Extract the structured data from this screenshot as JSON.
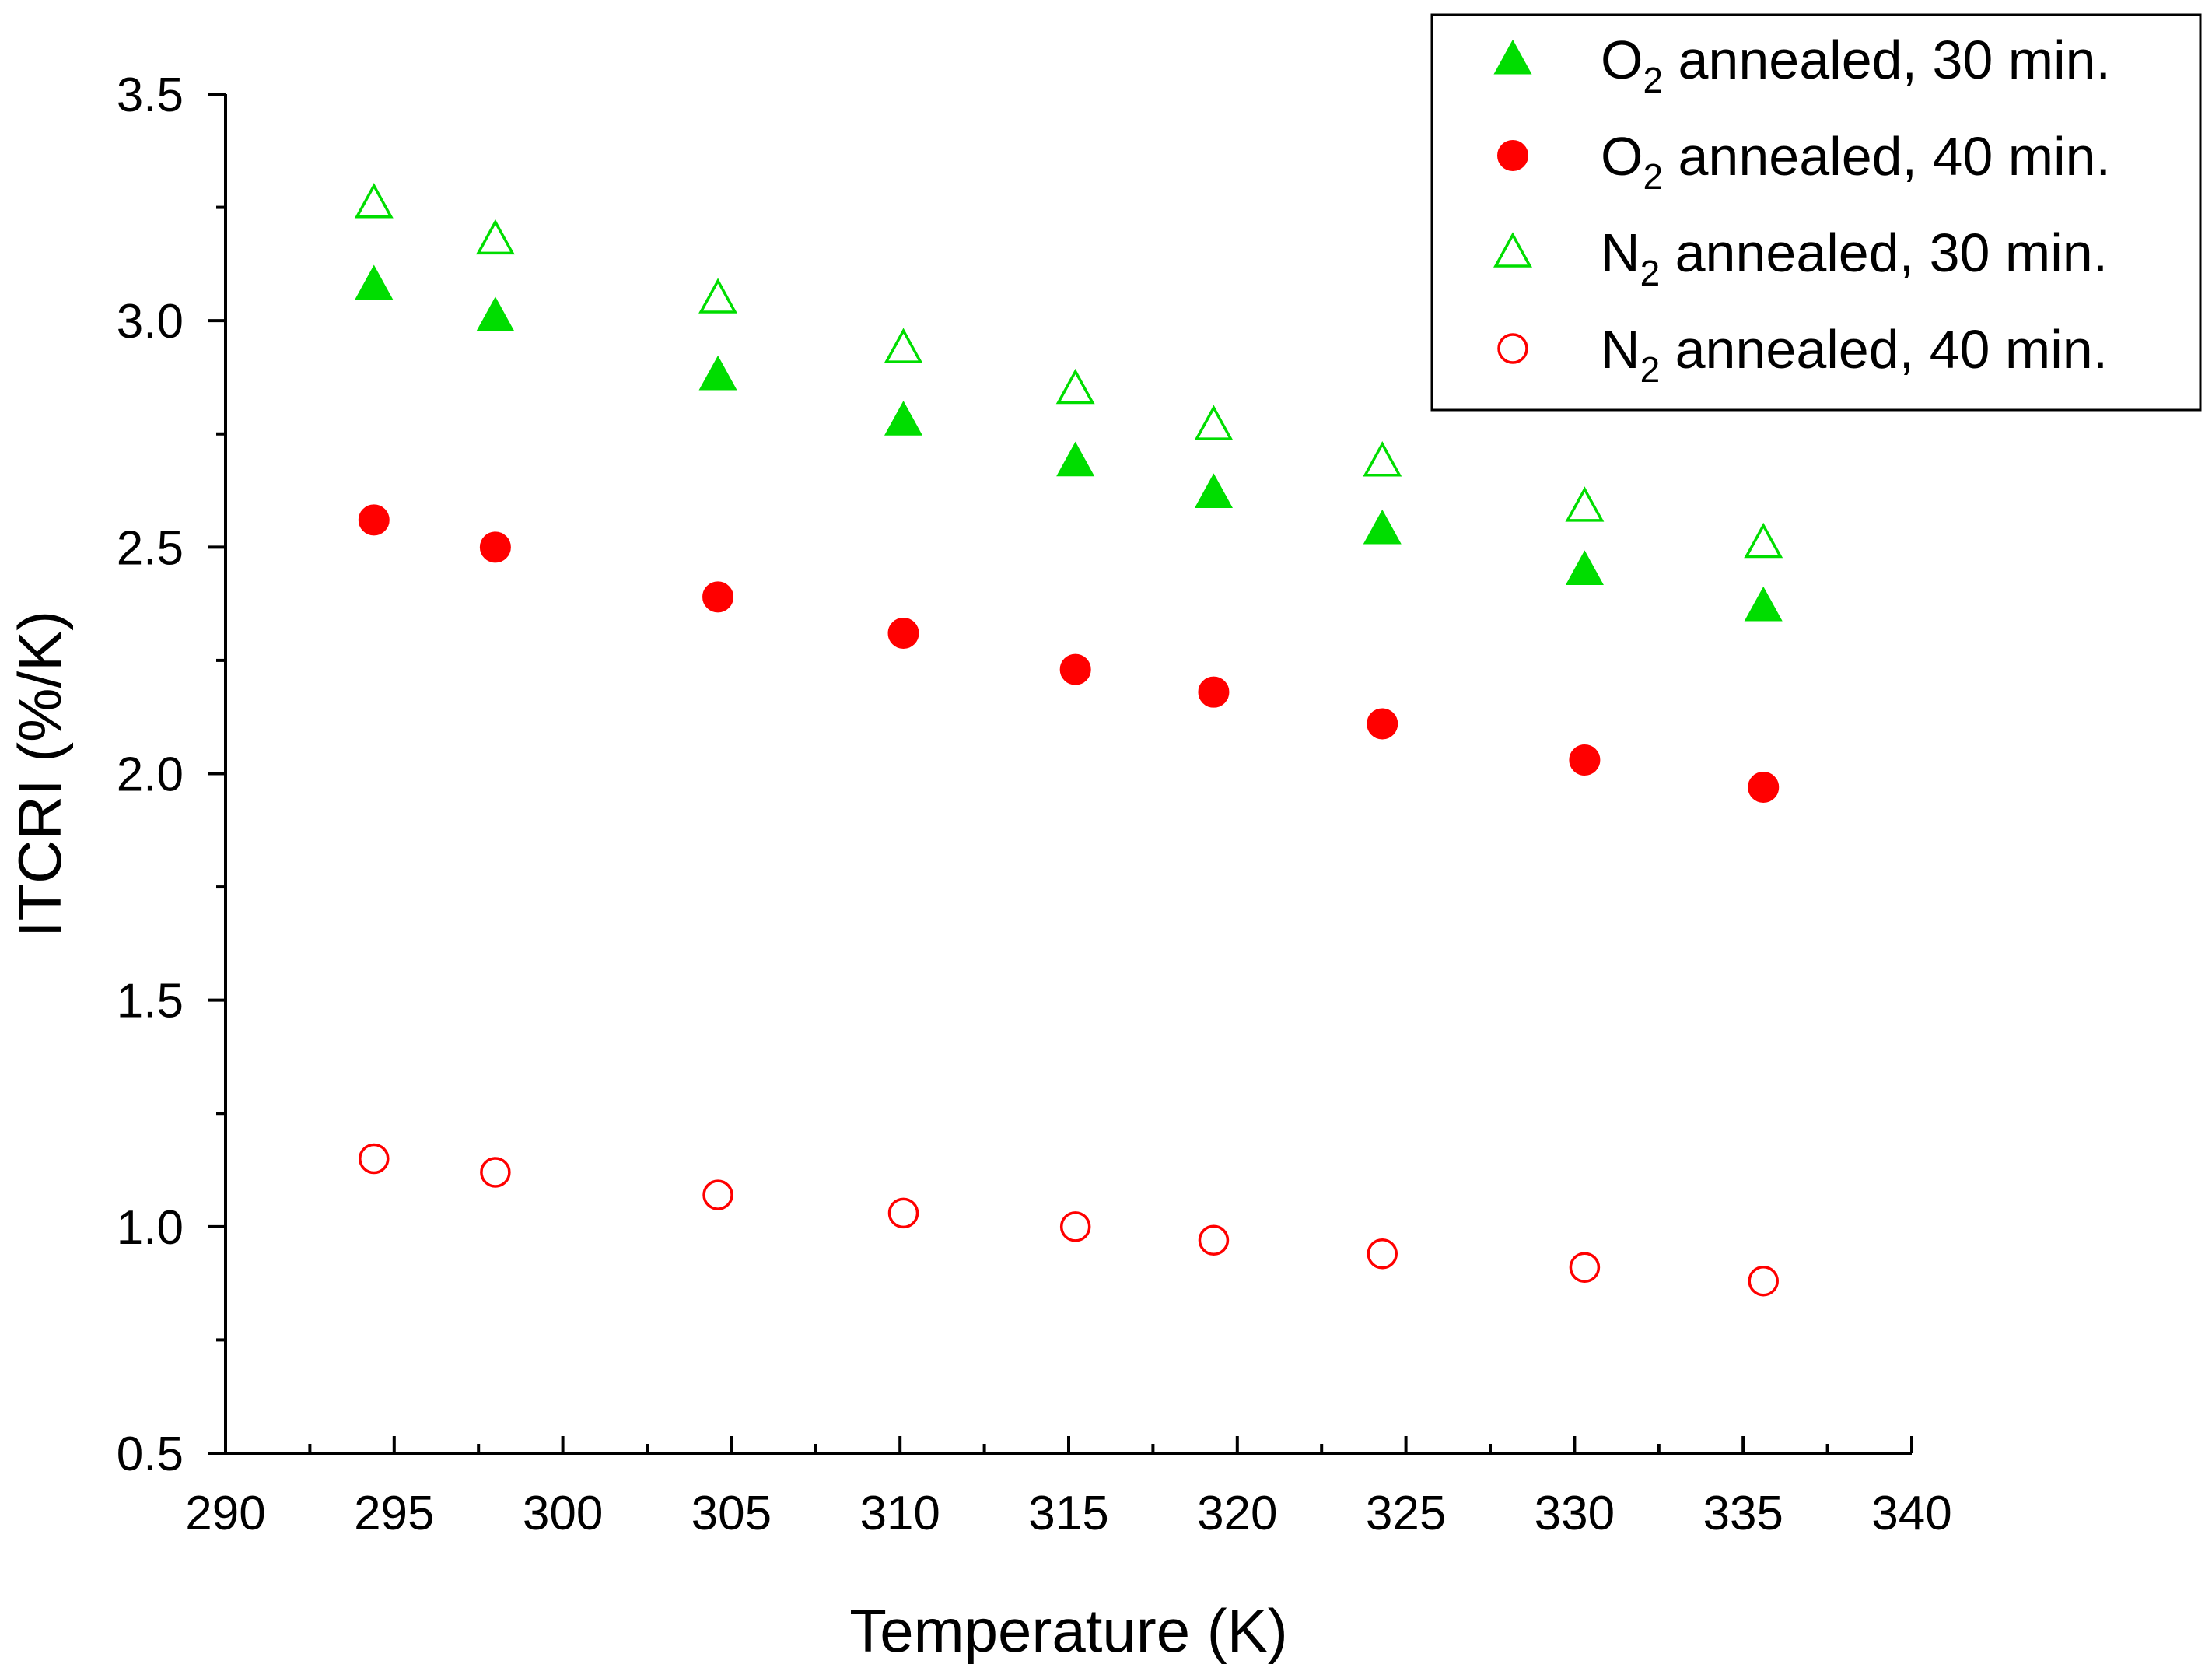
{
  "chart_data": {
    "type": "scatter",
    "title": "",
    "xlabel": "Temperature (K)",
    "ylabel": "ITCRI (%/K)",
    "xlim": [
      290,
      340
    ],
    "ylim": [
      0.5,
      3.5
    ],
    "x_ticks": [
      290,
      295,
      300,
      305,
      310,
      315,
      320,
      325,
      330,
      335,
      340
    ],
    "y_ticks": [
      0.5,
      1.0,
      1.5,
      2.0,
      2.5,
      3.0,
      3.5
    ],
    "x_tick_labels": [
      "290",
      "295",
      "300",
      "305",
      "310",
      "315",
      "320",
      "325",
      "330",
      "335",
      "340"
    ],
    "y_tick_labels": [
      "0.5",
      "1.0",
      "1.5",
      "2.0",
      "2.5",
      "3.0",
      "3.5"
    ],
    "grid": false,
    "legend_position": "top-right",
    "x": [
      294.4,
      298.0,
      304.6,
      310.1,
      315.2,
      319.3,
      324.3,
      330.3,
      335.6
    ],
    "series": [
      {
        "name": "O2 annealed, 30 min.",
        "label_main": "O",
        "label_sub": "2",
        "label_rest": " annealed, 30 min.",
        "marker": "triangle",
        "filled": true,
        "color": "#00dd00",
        "values": [
          3.08,
          3.01,
          2.88,
          2.78,
          2.69,
          2.62,
          2.54,
          2.45,
          2.37
        ]
      },
      {
        "name": "O2 annealed, 40 min.",
        "label_main": "O",
        "label_sub": "2",
        "label_rest": " annealed, 40 min.",
        "marker": "circle",
        "filled": true,
        "color": "#ff0000",
        "values": [
          2.56,
          2.5,
          2.39,
          2.31,
          2.23,
          2.18,
          2.11,
          2.03,
          1.97
        ]
      },
      {
        "name": "N2 annealed, 30 min.",
        "label_main": "N",
        "label_sub": "2",
        "label_rest": " annealed, 30 min.",
        "marker": "triangle",
        "filled": false,
        "color": "#00dd00",
        "values": [
          3.26,
          3.18,
          3.05,
          2.94,
          2.85,
          2.77,
          2.69,
          2.59,
          2.51
        ]
      },
      {
        "name": "N2 annealed, 40 min.",
        "label_main": "N",
        "label_sub": "2",
        "label_rest": " annealed, 40 min.",
        "marker": "circle",
        "filled": false,
        "color": "#ff0000",
        "values": [
          1.15,
          1.12,
          1.07,
          1.03,
          1.0,
          0.97,
          0.94,
          0.91,
          0.88
        ]
      }
    ]
  }
}
